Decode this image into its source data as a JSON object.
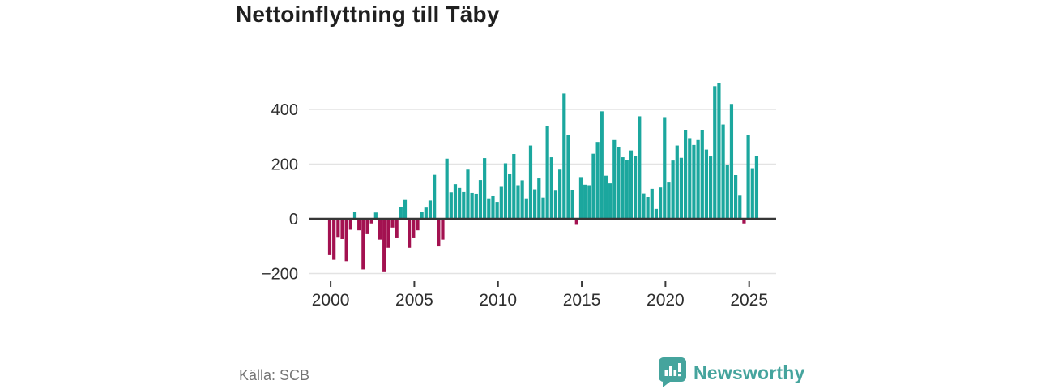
{
  "title": "Nettoinflyttning till Täby",
  "source": "Källa: SCB",
  "logo": {
    "brand": "Newsworthy",
    "icon": "bar-chart-speech-bubble-icon",
    "color": "#45a49d"
  },
  "chart_data": {
    "type": "bar",
    "title": "Nettoinflyttning till Täby",
    "frequency": "quarterly",
    "start_period": "2000Q1",
    "end_period": "2025Q3",
    "xlabel": "",
    "ylabel": "",
    "grid": "horizontal",
    "legend": "none",
    "ylim": [
      -230,
      515
    ],
    "y_ticks": [
      400,
      200,
      0,
      -200
    ],
    "y_tick_labels": [
      "400",
      "200",
      "0",
      "−200"
    ],
    "x_ticks": [
      2000,
      2005,
      2010,
      2015,
      2020,
      2025
    ],
    "x_tick_labels": [
      "2000",
      "2005",
      "2010",
      "2015",
      "2020",
      "2025"
    ],
    "colors": {
      "positive": "#1ba79e",
      "negative": "#a31150",
      "axis": "#363636",
      "gridline": "#e3e3e3",
      "tick_text": "#2e2e2e"
    },
    "values": [
      -133,
      -150,
      -69,
      -74,
      -155,
      -40,
      25,
      -42,
      -185,
      -56,
      -17,
      23,
      -76,
      -195,
      -106,
      -32,
      -71,
      44,
      69,
      -106,
      -71,
      -42,
      25,
      41,
      67,
      161,
      -101,
      -76,
      220,
      97,
      127,
      113,
      98,
      180,
      95,
      92,
      142,
      222,
      75,
      83,
      62,
      117,
      203,
      163,
      237,
      123,
      141,
      75,
      268,
      108,
      148,
      78,
      338,
      225,
      103,
      180,
      458,
      308,
      105,
      -22,
      150,
      125,
      123,
      238,
      281,
      393,
      158,
      130,
      288,
      263,
      225,
      216,
      250,
      231,
      375,
      93,
      80,
      110,
      36,
      115,
      372,
      133,
      213,
      268,
      223,
      325,
      295,
      270,
      288,
      325,
      253,
      228,
      485,
      495,
      345,
      198,
      420,
      160,
      85,
      -17,
      308,
      185,
      230
    ]
  }
}
